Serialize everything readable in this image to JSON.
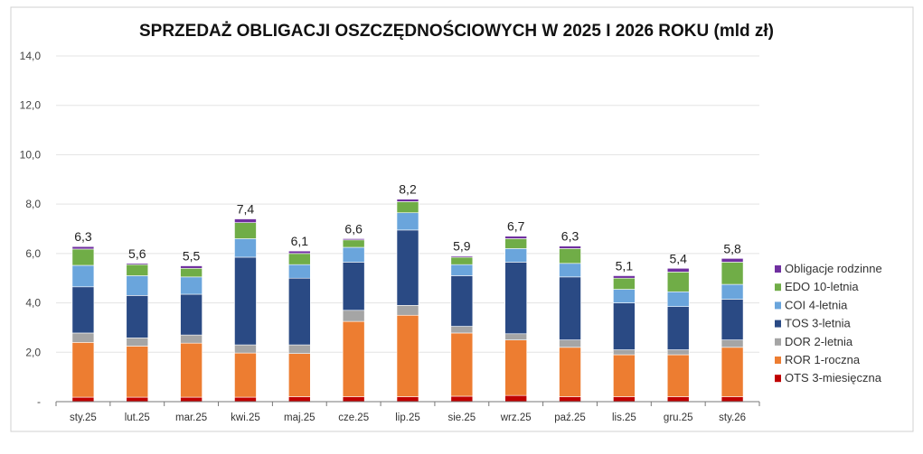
{
  "chart_data": {
    "type": "bar",
    "stacked": true,
    "title": "SPRZEDAŻ OBLIGACJI OSZCZĘDNOŚCIOWYCH W 2025 I 2026 ROKU (mld zł)",
    "xlabel": "",
    "ylabel": "",
    "ylim": [
      0,
      14
    ],
    "yticks": [
      "-",
      "2,0",
      "4,0",
      "6,0",
      "8,0",
      "10,0",
      "12,0",
      "14,0"
    ],
    "grid": true,
    "legend_position": "right",
    "categories": [
      "sty.25",
      "lut.25",
      "mar.25",
      "kwi.25",
      "maj.25",
      "cze.25",
      "lip.25",
      "sie.25",
      "wrz.25",
      "paź.25",
      "lis.25",
      "gru.25",
      "sty.26"
    ],
    "totals": [
      "6,3",
      "5,6",
      "5,5",
      "7,4",
      "6,1",
      "6,6",
      "8,2",
      "5,9",
      "6,7",
      "6,3",
      "5,1",
      "5,4",
      "5,8"
    ],
    "series": [
      {
        "name": "OTS 3-miesięczna",
        "color": "#c00000",
        "values": [
          0.18,
          0.18,
          0.18,
          0.18,
          0.2,
          0.2,
          0.2,
          0.22,
          0.25,
          0.2,
          0.2,
          0.2,
          0.2
        ]
      },
      {
        "name": "ROR 1-roczna",
        "color": "#ed7d31",
        "values": [
          2.22,
          2.07,
          2.19,
          1.79,
          1.75,
          3.05,
          3.3,
          2.56,
          2.25,
          2.0,
          1.7,
          1.7,
          2.0
        ]
      },
      {
        "name": "DOR 2-letnia",
        "color": "#a5a5a5",
        "values": [
          0.38,
          0.33,
          0.33,
          0.33,
          0.35,
          0.45,
          0.4,
          0.27,
          0.25,
          0.3,
          0.2,
          0.2,
          0.3
        ]
      },
      {
        "name": "TOS 3-letnia",
        "color": "#2a4a84",
        "values": [
          1.87,
          1.72,
          1.65,
          3.55,
          2.7,
          1.95,
          3.05,
          2.05,
          2.9,
          2.55,
          1.9,
          1.75,
          1.65
        ]
      },
      {
        "name": "COI 4-letnia",
        "color": "#6aa5dc",
        "values": [
          0.87,
          0.8,
          0.7,
          0.75,
          0.55,
          0.6,
          0.7,
          0.45,
          0.55,
          0.55,
          0.55,
          0.6,
          0.6
        ]
      },
      {
        "name": "EDO 10-letnia",
        "color": "#70ad47",
        "values": [
          0.66,
          0.45,
          0.35,
          0.65,
          0.45,
          0.3,
          0.45,
          0.3,
          0.4,
          0.6,
          0.45,
          0.8,
          0.9
        ]
      },
      {
        "name": "Obligacje rodzinne",
        "color": "#7030a0",
        "values": [
          0.1,
          0.05,
          0.1,
          0.15,
          0.1,
          0.05,
          0.1,
          0.05,
          0.1,
          0.1,
          0.1,
          0.15,
          0.15
        ]
      }
    ]
  }
}
